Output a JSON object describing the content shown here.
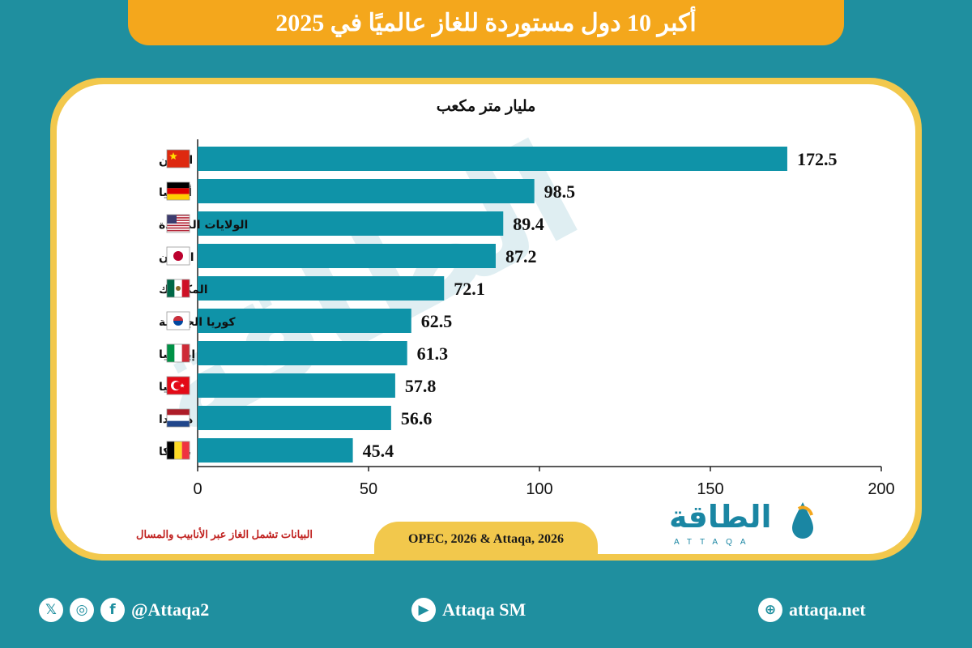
{
  "header": {
    "title": "أكبر 10 دول مستوردة للغاز عالميًا في 2025"
  },
  "chart_data": {
    "type": "bar",
    "orientation": "horizontal",
    "title": "أكبر 10 دول مستوردة للغاز عالميًا في 2025",
    "unit_label": "مليار متر مكعب",
    "categories": [
      "الصين",
      "ألمانيا",
      "الولايات المتحدة",
      "اليابان",
      "المكسيك",
      "كوريا الجنوبية",
      "إيطاليا",
      "تركيا",
      "هولندا",
      "بلجيكا"
    ],
    "values": [
      172.5,
      98.5,
      89.4,
      87.2,
      72.1,
      62.5,
      61.3,
      57.8,
      56.6,
      45.4
    ],
    "value_labels": [
      "172.5",
      "98.5",
      "89.4",
      "87.2",
      "72.1",
      "62.5",
      "61.3",
      "57.8",
      "56.6",
      "45.4"
    ],
    "xlim": [
      0,
      200
    ],
    "x_ticks": [
      "0",
      "50",
      "100",
      "150",
      "200"
    ],
    "bar_color": "#0f93a8",
    "grid": false
  },
  "flags": [
    "china-flag-icon",
    "germany-flag-icon",
    "usa-flag-icon",
    "japan-flag-icon",
    "mexico-flag-icon",
    "south-korea-flag-icon",
    "italy-flag-icon",
    "turkey-flag-icon",
    "netherlands-flag-icon",
    "belgium-flag-icon"
  ],
  "note": "البيانات تشمل الغاز عبر الأنابيب والمسال",
  "source": "OPEC, 2026 & Attaqa, 2026",
  "logo": {
    "text": "الطاقة",
    "latin": "ATTAQA"
  },
  "footer": {
    "social_handle": "@Attaqa2",
    "youtube": "Attaqa SM",
    "website": "attaqa.net"
  },
  "colors": {
    "background": "#1f8f9f",
    "banner": "#f4a71c",
    "card_border": "#f2c84c",
    "note": "#c0211f"
  }
}
